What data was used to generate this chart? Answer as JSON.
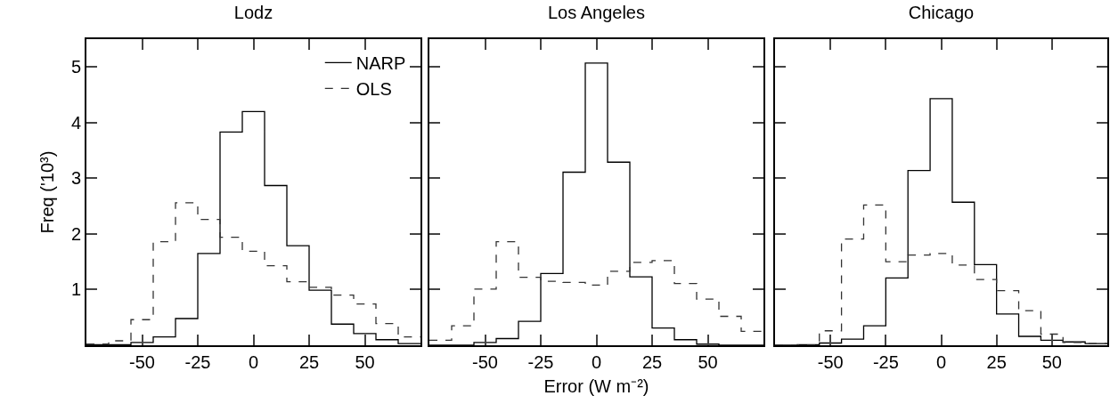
{
  "chart_data": [
    {
      "type": "histogram",
      "title": "Lodz",
      "ylabel": "Freq ('10³)",
      "bins": [
        -75,
        -65,
        -55,
        -45,
        -35,
        -25,
        -15,
        -5,
        5,
        15,
        25,
        35,
        45,
        55,
        65,
        75
      ],
      "xlim": [
        -75,
        75
      ],
      "ylim": [
        0,
        5.5
      ],
      "xticks": [
        -50,
        -25,
        0,
        25,
        50
      ],
      "yticks": [
        1,
        2,
        3,
        4,
        5
      ],
      "grid": false,
      "legend": "top right",
      "series": [
        {
          "name": "NARP",
          "color": "#000000",
          "line_style": "solid",
          "values": [
            0.01,
            0.01,
            0.05,
            0.15,
            0.48,
            1.65,
            3.83,
            4.2,
            2.87,
            1.79,
            0.99,
            0.38,
            0.21,
            0.1,
            0.03
          ]
        },
        {
          "name": "OLS",
          "color": "#333333",
          "line_style": "dashed",
          "values": [
            0.02,
            0.08,
            0.46,
            1.86,
            2.56,
            2.26,
            1.94,
            1.69,
            1.43,
            1.14,
            1.04,
            0.9,
            0.74,
            0.39,
            0.15
          ]
        }
      ]
    },
    {
      "type": "histogram",
      "title": "Los Angeles",
      "xlabel": "Error (W m⁻²)",
      "bins": [
        -75,
        -65,
        -55,
        -45,
        -35,
        -25,
        -15,
        -5,
        5,
        15,
        25,
        35,
        45,
        55,
        65,
        75
      ],
      "xlim": [
        -75,
        75
      ],
      "ylim": [
        0,
        5.5
      ],
      "xticks": [
        -50,
        -25,
        0,
        25,
        50
      ],
      "yticks": [
        1,
        2,
        3,
        4,
        5
      ],
      "grid": false,
      "tick_labels": "x",
      "series": [
        {
          "color": "#000000",
          "line_style": "solid",
          "values": [
            0,
            0,
            0.05,
            0.12,
            0.43,
            1.29,
            3.11,
            5.07,
            3.29,
            1.23,
            0.31,
            0.1,
            0.02,
            0,
            0
          ]
        },
        {
          "color": "#333333",
          "line_style": "dashed",
          "values": [
            0.09,
            0.35,
            1.01,
            1.86,
            1.22,
            1.15,
            1.13,
            1.08,
            1.33,
            1.49,
            1.52,
            1.11,
            0.83,
            0.52,
            0.25
          ]
        }
      ]
    },
    {
      "type": "histogram",
      "title": "Chicago",
      "bins": [
        -75,
        -65,
        -55,
        -45,
        -35,
        -25,
        -15,
        -5,
        5,
        15,
        25,
        35,
        45,
        55,
        65,
        75
      ],
      "xlim": [
        -75,
        75
      ],
      "ylim": [
        0,
        5.5
      ],
      "xticks": [
        -50,
        -25,
        0,
        25,
        50
      ],
      "yticks": [
        1,
        2,
        3,
        4,
        5
      ],
      "grid": false,
      "tick_labels": "x",
      "series": [
        {
          "color": "#000000",
          "line_style": "solid",
          "values": [
            0,
            0.01,
            0.04,
            0.11,
            0.35,
            1.21,
            3.14,
            4.43,
            2.57,
            1.45,
            0.56,
            0.16,
            0.09,
            0.06,
            0.03
          ]
        },
        {
          "color": "#333333",
          "line_style": "dashed",
          "values": [
            0,
            0,
            0.26,
            1.91,
            2.52,
            1.5,
            1.62,
            1.65,
            1.44,
            1.18,
            0.98,
            0.62,
            0.2,
            0.05,
            0.03
          ]
        }
      ]
    }
  ]
}
